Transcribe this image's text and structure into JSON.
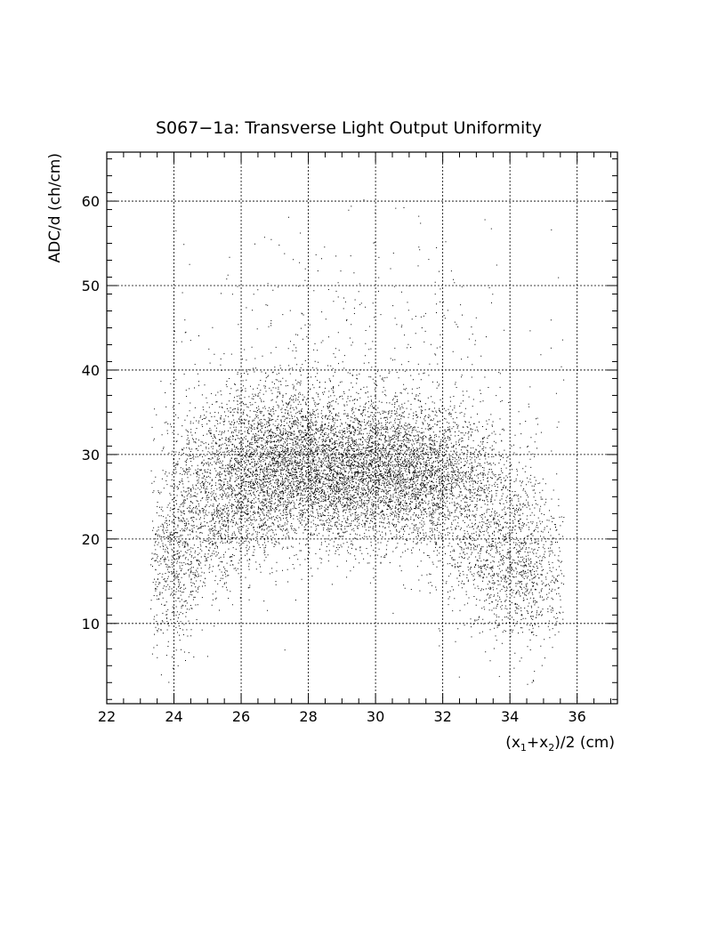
{
  "chart_data": {
    "type": "scatter",
    "title": "S067−1a: Transverse Light Output Uniformity",
    "xlabel": {
      "open": "(x",
      "sub1": "1",
      "plus": "+x",
      "sub2": "2",
      "close": ")/2 (cm)"
    },
    "ylabel": "ADC/d (ch/cm)",
    "xlim": [
      22,
      37.2
    ],
    "ylim": [
      0.5,
      65.8
    ],
    "x_ticks": [
      22,
      24,
      26,
      28,
      30,
      32,
      34,
      36
    ],
    "y_ticks": [
      10,
      20,
      30,
      40,
      50,
      60
    ],
    "x_tick_labels": [
      "22",
      "24",
      "26",
      "28",
      "30",
      "32",
      "34",
      "36"
    ],
    "y_tick_labels": [
      "10",
      "20",
      "30",
      "40",
      "50",
      "60"
    ],
    "grid": true,
    "legend": "none",
    "marker_color": "#000000",
    "density_clusters": [
      {
        "x": 28.5,
        "y": 28.5,
        "sx": 2.1,
        "sy": 4.5,
        "weight": 0.46
      },
      {
        "x": 31.3,
        "y": 27.5,
        "sx": 1.3,
        "sy": 4.0,
        "weight": 0.17
      },
      {
        "x": 26.8,
        "y": 28.5,
        "sx": 1.0,
        "sy": 5.0,
        "weight": 0.09
      },
      {
        "x": 25.0,
        "y": 21.5,
        "sx": 0.9,
        "sy": 4.0,
        "weight": 0.08
      },
      {
        "x": 33.6,
        "y": 19.0,
        "sx": 1.0,
        "sy": 4.5,
        "weight": 0.09
      },
      {
        "x": 34.6,
        "y": 14.5,
        "sx": 0.7,
        "sy": 4.0,
        "weight": 0.04
      },
      {
        "x": 23.9,
        "y": 15.5,
        "sx": 0.4,
        "sy": 4.5,
        "weight": 0.03
      },
      {
        "x": 29.5,
        "y": 40.0,
        "sx": 3.0,
        "sy": 10.0,
        "weight": 0.04
      }
    ],
    "point_count": 30000
  }
}
